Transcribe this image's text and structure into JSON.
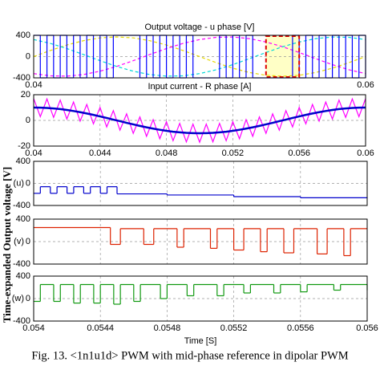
{
  "chart_data": [
    {
      "type": "line",
      "title": "Output voltage - u phase [V]",
      "xlim": [
        0.04,
        0.06
      ],
      "xticks": [
        0.04,
        0.06
      ],
      "ylim": [
        -400,
        400
      ],
      "yticks": [
        -400,
        0,
        400
      ],
      "grid": true,
      "highlight": [
        0.054,
        0.056
      ],
      "series": [
        {
          "color": "#e6d800",
          "dash": true,
          "x": [
            0.04,
            0.041,
            0.042,
            0.043,
            0.044,
            0.045,
            0.046,
            0.047,
            0.048,
            0.049,
            0.05,
            0.051,
            0.052,
            0.053,
            0.054,
            0.055,
            0.056,
            0.057,
            0.058,
            0.059,
            0.06
          ],
          "values": [
            0,
            114,
            218,
            299,
            352,
            370,
            352,
            299,
            218,
            114,
            0,
            -114,
            -218,
            -299,
            -352,
            -370,
            -352,
            -299,
            -218,
            -114,
            0
          ]
        },
        {
          "color": "#ff00ff",
          "dash": true,
          "x": [
            0.04,
            0.041,
            0.042,
            0.043,
            0.044,
            0.045,
            0.046,
            0.047,
            0.048,
            0.049,
            0.05,
            0.051,
            0.052,
            0.053,
            0.054,
            0.055,
            0.056,
            0.057,
            0.058,
            0.059,
            0.06
          ],
          "values": [
            -320,
            -362,
            -368,
            -338,
            -275,
            -185,
            -77,
            39,
            151,
            248,
            320,
            362,
            368,
            338,
            275,
            185,
            77,
            -39,
            -151,
            -248,
            -320
          ]
        },
        {
          "color": "#00d8d8",
          "dash": true,
          "x": [
            0.04,
            0.041,
            0.042,
            0.043,
            0.044,
            0.045,
            0.046,
            0.047,
            0.048,
            0.049,
            0.05,
            0.051,
            0.052,
            0.053,
            0.054,
            0.055,
            0.056,
            0.057,
            0.058,
            0.059,
            0.06
          ],
          "values": [
            320,
            248,
            151,
            39,
            -77,
            -185,
            -275,
            -338,
            -368,
            -362,
            -320,
            -248,
            -151,
            -39,
            77,
            185,
            275,
            338,
            368,
            362,
            320
          ]
        },
        {
          "color": "#0000ff",
          "drawstyle": "steps",
          "x": [
            0.04,
            0.0404,
            0.0408,
            0.0412,
            0.0416,
            0.042,
            0.0424,
            0.0428,
            0.0432,
            0.0436,
            0.044,
            0.0444,
            0.0448,
            0.0452,
            0.0456,
            0.046,
            0.0464,
            0.0468,
            0.0472,
            0.0476,
            0.048,
            0.0484,
            0.0488,
            0.0492,
            0.0496,
            0.05,
            0.0504,
            0.0508,
            0.0512,
            0.0516,
            0.052,
            0.0524,
            0.0528,
            0.0532,
            0.0536,
            0.054,
            0.0544,
            0.0548,
            0.0552,
            0.0556,
            0.056,
            0.0564,
            0.0568,
            0.0572,
            0.0576,
            0.058,
            0.0584,
            0.0588,
            0.0592,
            0.0596,
            0.06
          ],
          "values": [
            400,
            -400,
            400,
            -400,
            400,
            -400,
            400,
            -400,
            400,
            -400,
            400,
            -400,
            400,
            400,
            400,
            400,
            -400,
            400,
            -400,
            400,
            -400,
            400,
            -400,
            400,
            -400,
            -400,
            -400,
            -400,
            400,
            -400,
            400,
            -400,
            400,
            -400,
            -400,
            -400,
            -400,
            -400,
            -400,
            400,
            -400,
            400,
            -400,
            400,
            -400,
            400,
            -400,
            400,
            -400,
            400,
            -400
          ]
        }
      ]
    },
    {
      "type": "line",
      "title": "Input current - R phase [A]",
      "xlim": [
        0.04,
        0.06
      ],
      "xticks": [
        0.04,
        0.044,
        0.048,
        0.052,
        0.056,
        0.06
      ],
      "ylim": [
        -20,
        20
      ],
      "yticks": [
        -20,
        0,
        20
      ],
      "grid": true,
      "x": [
        0.04,
        0.0404,
        0.0408,
        0.0412,
        0.0416,
        0.042,
        0.0424,
        0.0428,
        0.0432,
        0.0436,
        0.044,
        0.0444,
        0.0448,
        0.0452,
        0.0456,
        0.046,
        0.0464,
        0.0468,
        0.0472,
        0.0476,
        0.048,
        0.0484,
        0.0488,
        0.0492,
        0.0496,
        0.05,
        0.0504,
        0.0508,
        0.0512,
        0.0516,
        0.052,
        0.0524,
        0.0528,
        0.0532,
        0.0536,
        0.054,
        0.0544,
        0.0548,
        0.0552,
        0.0556,
        0.056,
        0.0564,
        0.0568,
        0.0572,
        0.0576,
        0.058,
        0.0584,
        0.0588,
        0.0592,
        0.0596,
        0.06
      ],
      "series": [
        {
          "color": "#ff00ff",
          "values": [
            17,
            2.9,
            16.7,
            2.3,
            15.8,
            1.1,
            14.3,
            -0.6,
            12.4,
            -2.7,
            10.1,
            -5.1,
            7.6,
            -7.6,
            5.1,
            -10.1,
            2.7,
            -12.4,
            0.6,
            -14.3,
            -1.1,
            -15.8,
            -2.3,
            -16.7,
            -2.9,
            -17,
            -2.9,
            -16.7,
            -2.3,
            -15.8,
            -1.1,
            -14.3,
            0.6,
            -12.4,
            2.7,
            -10.1,
            5.1,
            -7.6,
            7.6,
            -5.1,
            10.1,
            -2.7,
            12.4,
            -0.6,
            14.3,
            1.1,
            15.8,
            2.3,
            16.7,
            2.9,
            17
          ]
        },
        {
          "color": "#0000cc",
          "width": 2.5,
          "values": [
            10,
            9.9,
            9.7,
            9.3,
            8.8,
            8.1,
            7.3,
            6.4,
            5.4,
            4.3,
            3.1,
            1.9,
            0.6,
            -0.6,
            -1.9,
            -3.1,
            -4.3,
            -5.4,
            -6.4,
            -7.3,
            -8.1,
            -8.8,
            -9.3,
            -9.7,
            -9.9,
            -10,
            -9.9,
            -9.7,
            -9.3,
            -8.8,
            -8.1,
            -7.3,
            -6.4,
            -5.4,
            -4.3,
            -3.1,
            -1.9,
            -0.6,
            0.6,
            1.9,
            3.1,
            4.3,
            5.4,
            6.4,
            7.3,
            8.1,
            8.8,
            9.3,
            9.7,
            9.9,
            10
          ]
        }
      ]
    },
    {
      "type": "line",
      "series_label": "(u)",
      "xlim": [
        0.054,
        0.056
      ],
      "xticks": [
        0.054,
        0.0544,
        0.0548,
        0.0552,
        0.0556,
        0.056
      ],
      "xtick_labels": false,
      "ylim": [
        -400,
        400
      ],
      "yticks": [
        -400,
        0,
        400
      ],
      "grid": true,
      "series": [
        {
          "color": "#0000cc",
          "drawstyle": "steps",
          "x": [
            0.054,
            0.05404,
            0.0541,
            0.05414,
            0.0542,
            0.05424,
            0.0543,
            0.05434,
            0.0544,
            0.05444,
            0.0545,
            0.0548,
            0.0552,
            0.0556,
            0.056
          ],
          "values": [
            -180,
            -60,
            -180,
            -60,
            -180,
            -60,
            -180,
            -60,
            -180,
            -60,
            -190,
            -210,
            -240,
            -260,
            -270
          ]
        }
      ]
    },
    {
      "type": "line",
      "series_label": "(v)",
      "xlim": [
        0.054,
        0.056
      ],
      "xticks": [
        0.054,
        0.0544,
        0.0548,
        0.0552,
        0.0556,
        0.056
      ],
      "xtick_labels": false,
      "ylim": [
        -400,
        400
      ],
      "yticks": [
        -400,
        0,
        400
      ],
      "grid": true,
      "series": [
        {
          "color": "#dd2200",
          "drawstyle": "steps",
          "x": [
            0.054,
            0.05446,
            0.05452,
            0.05466,
            0.05472,
            0.05486,
            0.0549,
            0.05506,
            0.0551,
            0.0552,
            0.05526,
            0.05536,
            0.0554,
            0.0555,
            0.05556,
            0.0557,
            0.05576,
            0.05586,
            0.0559,
            0.056
          ],
          "values": [
            250,
            -50,
            230,
            -50,
            230,
            -100,
            230,
            -120,
            230,
            -150,
            230,
            -180,
            230,
            -200,
            230,
            -220,
            230,
            -250,
            230,
            230
          ]
        }
      ]
    },
    {
      "type": "line",
      "series_label": "(w)",
      "xlabel": "Time [S]",
      "xlim": [
        0.054,
        0.056
      ],
      "xticks": [
        0.054,
        0.0544,
        0.0548,
        0.0552,
        0.0556,
        0.056
      ],
      "xtick_labels": true,
      "ylim": [
        -400,
        400
      ],
      "yticks": [
        -400,
        0,
        400
      ],
      "grid": true,
      "series": [
        {
          "color": "#119911",
          "drawstyle": "steps",
          "x": [
            0.054,
            0.05404,
            0.05412,
            0.05416,
            0.05424,
            0.05428,
            0.05436,
            0.0544,
            0.05448,
            0.05452,
            0.0546,
            0.05464,
            0.05476,
            0.0548,
            0.05492,
            0.05496,
            0.0551,
            0.05514,
            0.05526,
            0.0553,
            0.05544,
            0.05548,
            0.0556,
            0.05564,
            0.0558,
            0.05584,
            0.056
          ],
          "values": [
            -50,
            250,
            -50,
            250,
            -80,
            250,
            -80,
            250,
            -100,
            250,
            -50,
            250,
            0,
            250,
            50,
            250,
            50,
            250,
            100,
            250,
            100,
            250,
            120,
            250,
            150,
            250,
            150
          ]
        }
      ]
    }
  ],
  "shared_ylabel": "Time-expanded Output voltage [V]",
  "caption": "Fig. 13. <1n1u1d> PWM with mid-phase reference in dipolar PWM"
}
